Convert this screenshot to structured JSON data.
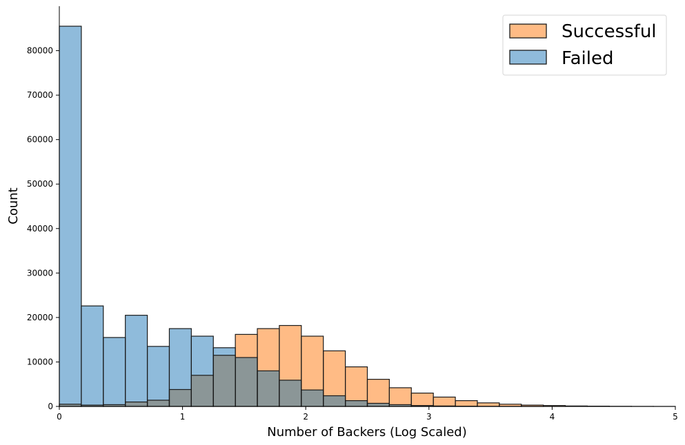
{
  "chart_data": {
    "type": "bar",
    "histogram": true,
    "xlabel": "Number of Backers (Log Scaled)",
    "ylabel": "Count",
    "xlim": [
      0,
      5
    ],
    "ylim": [
      0,
      90000
    ],
    "xticks": [
      0,
      1,
      2,
      3,
      4,
      5
    ],
    "yticks": [
      0,
      10000,
      20000,
      30000,
      40000,
      50000,
      60000,
      70000,
      80000
    ],
    "legend_position": "top-right",
    "grid": false,
    "bin_edges": [
      0.0,
      0.1786,
      0.3571,
      0.5357,
      0.7143,
      0.8929,
      1.0714,
      1.25,
      1.4286,
      1.6071,
      1.7857,
      1.9643,
      2.1429,
      2.3214,
      2.5,
      2.6786,
      2.8571,
      3.0357,
      3.2143,
      3.3929,
      3.5714,
      3.75,
      3.9286,
      4.1071,
      4.2857,
      4.4643,
      4.6429,
      4.8214,
      5.0
    ],
    "series": [
      {
        "name": "Successful",
        "color": "#ffbb85",
        "values": [
          500,
          300,
          400,
          1000,
          1400,
          3800,
          7000,
          11500,
          16200,
          17500,
          18200,
          15800,
          12500,
          8900,
          6100,
          4200,
          3000,
          2100,
          1300,
          800,
          500,
          300,
          200,
          100,
          60,
          30,
          15,
          5
        ]
      },
      {
        "name": "Failed",
        "color": "#8fbbdb",
        "values": [
          85500,
          22600,
          15500,
          20500,
          13500,
          17500,
          15800,
          13200,
          11000,
          8000,
          5900,
          3700,
          2400,
          1300,
          700,
          400,
          200,
          100,
          50,
          20,
          10,
          5,
          0,
          0,
          0,
          0,
          0,
          0
        ]
      }
    ],
    "overlap_color": "#8b9697"
  }
}
